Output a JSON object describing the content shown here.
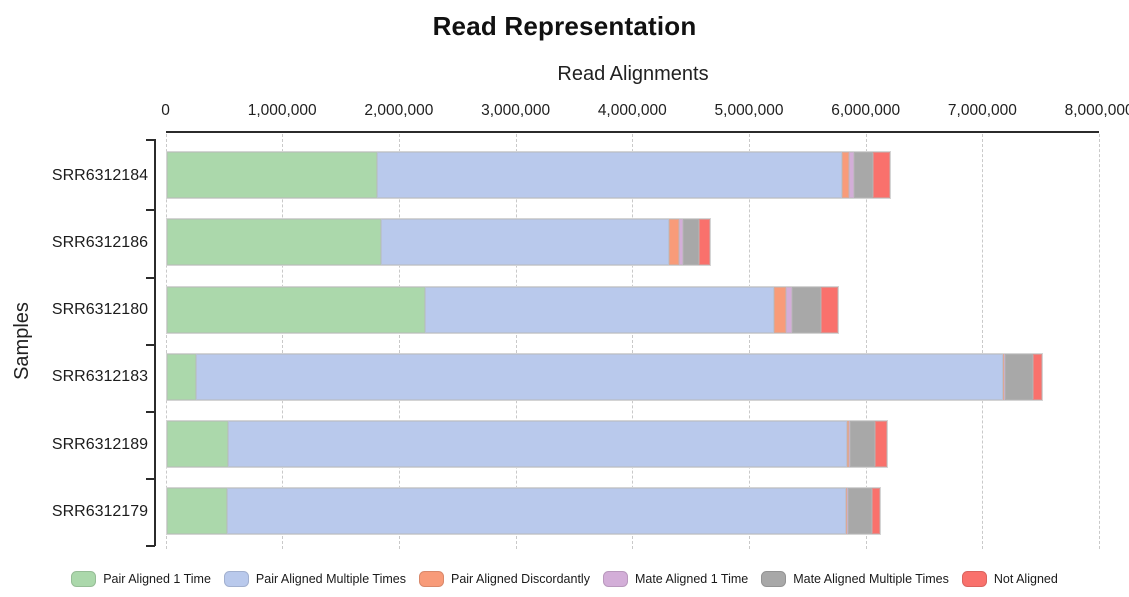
{
  "chart_data": {
    "type": "bar",
    "orientation": "horizontal",
    "stacked": true,
    "title": "Read Representation",
    "xlabel": "Read Alignments",
    "ylabel": "Samples",
    "xlim": [
      0,
      8000000
    ],
    "x_ticks": [
      0,
      1000000,
      2000000,
      3000000,
      4000000,
      5000000,
      6000000,
      7000000,
      8000000
    ],
    "x_tick_labels": [
      "0",
      "1,000,000",
      "2,000,000",
      "3,000,000",
      "4,000,000",
      "5,000,000",
      "6,000,000",
      "7,000,000",
      "8,000,000"
    ],
    "grid": "vertical-dashed",
    "legend_position": "bottom",
    "categories": [
      "SRR6312184",
      "SRR6312186",
      "SRR6312180",
      "SRR6312183",
      "SRR6312189",
      "SRR6312179"
    ],
    "series": [
      {
        "name": "Pair Aligned 1 Time",
        "color": "#abd8ab",
        "values": [
          1800000,
          1830000,
          2215000,
          250000,
          520000,
          510000
        ]
      },
      {
        "name": "Pair Aligned Multiple Times",
        "color": "#b9c9ec",
        "values": [
          3980000,
          2475000,
          2985000,
          6910000,
          5305000,
          5305000
        ]
      },
      {
        "name": "Pair Aligned Discordantly",
        "color": "#f89b79",
        "values": [
          62000,
          82000,
          103000,
          12000,
          15000,
          12000
        ]
      },
      {
        "name": "Mate Aligned 1 Time",
        "color": "#d3aed8",
        "values": [
          46000,
          38000,
          57000,
          10000,
          14000,
          12000
        ]
      },
      {
        "name": "Mate Aligned Multiple Times",
        "color": "#a8a8a8",
        "values": [
          163000,
          134000,
          243000,
          237000,
          214000,
          203000
        ]
      },
      {
        "name": "Not Aligned",
        "color": "#f9716c",
        "values": [
          142000,
          97000,
          149000,
          75000,
          100000,
          72000
        ]
      }
    ]
  }
}
